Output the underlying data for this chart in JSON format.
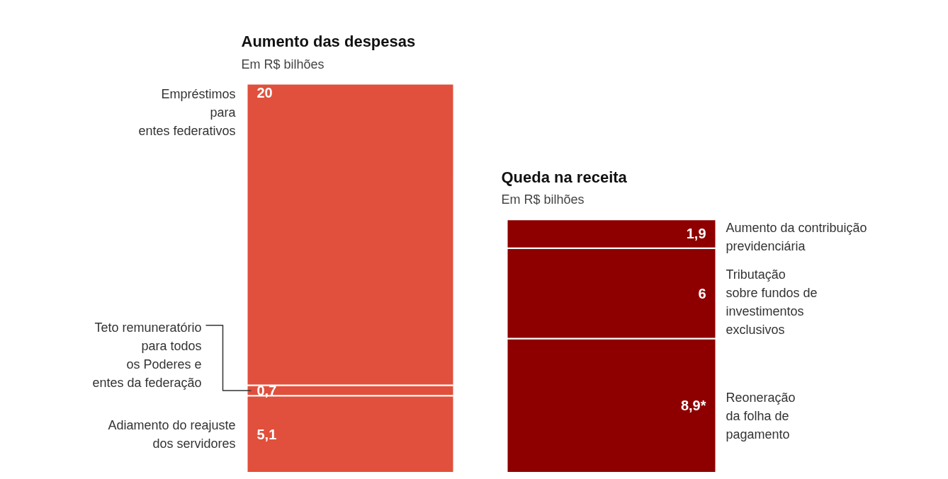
{
  "chart_data": [
    {
      "type": "bar",
      "stacked": true,
      "title": "Aumento das despesas",
      "subtitle": "Em R$ bilhões",
      "categories": [
        null
      ],
      "series": [
        {
          "name": "Adiamento do reajuste\ndos servidores",
          "color": "#e0503c",
          "values": [
            5.1
          ],
          "value_labels": [
            "5,1"
          ]
        },
        {
          "name": "Teto remuneratório\npara todos\nos Poderes e\nentes da federação",
          "color": "#e0503c",
          "values": [
            0.7
          ],
          "value_labels": [
            "0,7"
          ]
        },
        {
          "name": "Empréstimos\npara\nentes federativos",
          "color": "#e0503c",
          "values": [
            20
          ],
          "value_labels": [
            "20"
          ]
        }
      ]
    },
    {
      "type": "bar",
      "stacked": true,
      "title": "Queda na receita",
      "subtitle": "Em R$ bilhões",
      "categories": [
        null
      ],
      "series": [
        {
          "name": "Reoneração\nda folha de\npagamento",
          "color": "#8e0000",
          "values": [
            8.9
          ],
          "value_labels": [
            "8,9*"
          ]
        },
        {
          "name": "Tributação\nsobre fundos de\ninvestimentos\nexclusivos",
          "color": "#8e0000",
          "values": [
            6
          ],
          "value_labels": [
            "6"
          ]
        },
        {
          "name": "Aumento da contribuição\nprevidenciária",
          "color": "#8e0000",
          "values": [
            1.9
          ],
          "value_labels": [
            "1,9"
          ]
        }
      ]
    }
  ]
}
